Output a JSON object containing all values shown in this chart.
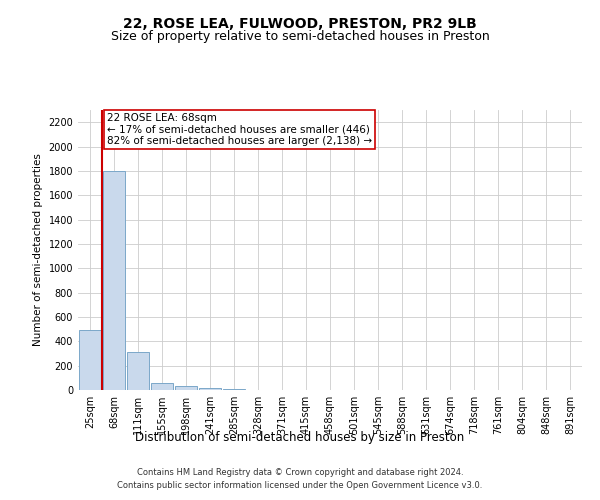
{
  "title": "22, ROSE LEA, FULWOOD, PRESTON, PR2 9LB",
  "subtitle": "Size of property relative to semi-detached houses in Preston",
  "xlabel": "Distribution of semi-detached houses by size in Preston",
  "ylabel": "Number of semi-detached properties",
  "categories": [
    "25sqm",
    "68sqm",
    "111sqm",
    "155sqm",
    "198sqm",
    "241sqm",
    "285sqm",
    "328sqm",
    "371sqm",
    "415sqm",
    "458sqm",
    "501sqm",
    "545sqm",
    "588sqm",
    "631sqm",
    "674sqm",
    "718sqm",
    "761sqm",
    "804sqm",
    "848sqm",
    "891sqm"
  ],
  "values": [
    490,
    1800,
    310,
    55,
    30,
    15,
    5,
    0,
    0,
    0,
    0,
    0,
    0,
    0,
    0,
    0,
    0,
    0,
    0,
    0,
    0
  ],
  "bar_color": "#c9d9ec",
  "bar_edge_color": "#7ba7c9",
  "highlight_index": 1,
  "highlight_line_color": "#cc0000",
  "annotation_line1": "22 ROSE LEA: 68sqm",
  "annotation_line2": "← 17% of semi-detached houses are smaller (446)",
  "annotation_line3": "82% of semi-detached houses are larger (2,138) →",
  "annotation_box_edge": "#cc0000",
  "ylim": [
    0,
    2300
  ],
  "yticks": [
    0,
    200,
    400,
    600,
    800,
    1000,
    1200,
    1400,
    1600,
    1800,
    2000,
    2200
  ],
  "grid_color": "#cccccc",
  "background_color": "#ffffff",
  "footer_line1": "Contains HM Land Registry data © Crown copyright and database right 2024.",
  "footer_line2": "Contains public sector information licensed under the Open Government Licence v3.0.",
  "title_fontsize": 10,
  "subtitle_fontsize": 9,
  "xlabel_fontsize": 8.5,
  "ylabel_fontsize": 7.5,
  "tick_fontsize": 7,
  "annotation_fontsize": 7.5,
  "footer_fontsize": 6
}
